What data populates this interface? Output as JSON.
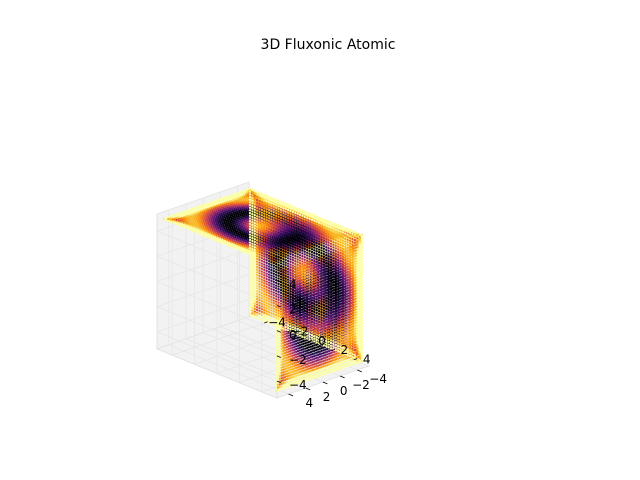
{
  "chart_data": {
    "type": "scatter",
    "projection": "3d",
    "title": "3D Fluxonic Atomic",
    "xlabel": "",
    "ylabel": "",
    "zlabel": "",
    "xlim": [
      -5,
      5
    ],
    "ylim": [
      -5,
      5
    ],
    "zlim": [
      -5,
      5
    ],
    "x_ticks": [
      -4,
      -2,
      0,
      2,
      4
    ],
    "y_ticks": [
      -4,
      -2,
      0,
      2,
      4
    ],
    "z_ticks": [
      -4,
      -2,
      0,
      2,
      4
    ],
    "x_tick_labels": [
      "−4",
      "−2",
      "0",
      "2",
      "4"
    ],
    "y_tick_labels": [
      "−4",
      "−2",
      "0",
      "2",
      "4"
    ],
    "z_tick_labels": [
      "−4",
      "−2",
      "0",
      "2",
      "4"
    ],
    "grid": true,
    "colormap": "inferno",
    "grid_points_per_axis": 48,
    "field": {
      "description_of_pattern": "concentric rings on each cube face with bright edges",
      "approximate_form": "intensity = |sin(r) / r| pattern centred on each face"
    },
    "colors": {
      "pane": "#f2f2f2",
      "pane_edge": "#e0e0e0",
      "grid": "#e6e6e6",
      "text": "#000000"
    }
  }
}
